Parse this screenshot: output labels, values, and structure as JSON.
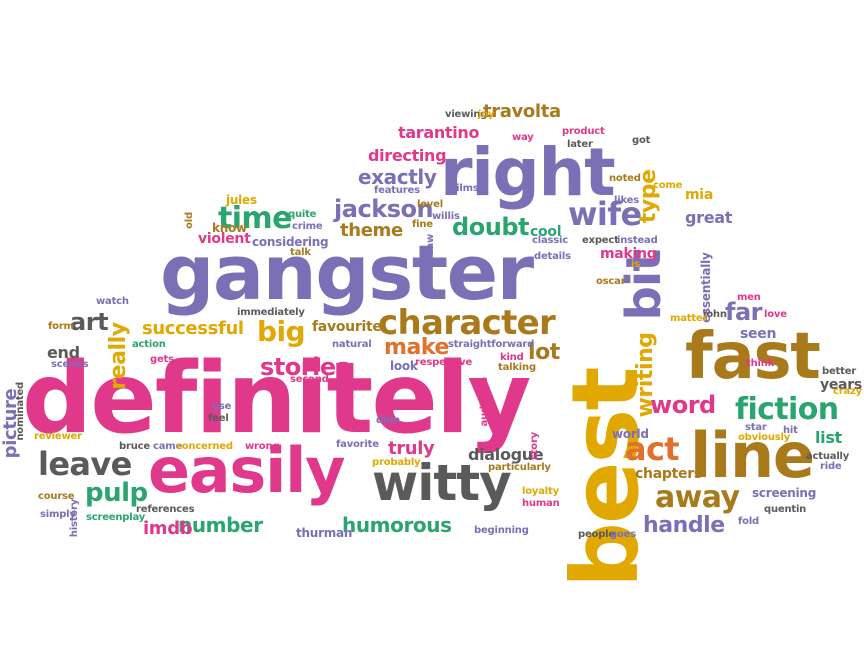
{
  "words": [
    {
      "text": "definitely",
      "color": "#e0388a",
      "rotated": false
    },
    {
      "text": "best",
      "color": "#e0a800",
      "rotated": true
    },
    {
      "text": "gangster",
      "color": "#7b6fb5",
      "rotated": false
    },
    {
      "text": "right",
      "color": "#7b6fb5",
      "rotated": false
    },
    {
      "text": "easily",
      "color": "#e0388a",
      "rotated": false
    },
    {
      "text": "witty",
      "color": "#5a5a5a",
      "rotated": false
    },
    {
      "text": "fast",
      "color": "#a87a1c",
      "rotated": false
    },
    {
      "text": "line",
      "color": "#a87a1c",
      "rotated": false
    },
    {
      "text": "bit",
      "color": "#7b6fb5",
      "rotated": true
    },
    {
      "text": "character",
      "color": "#a87a1c",
      "rotated": false
    },
    {
      "text": "fiction",
      "color": "#2aa570",
      "rotated": false
    },
    {
      "text": "wife",
      "color": "#7b6fb5",
      "rotated": false
    },
    {
      "text": "time",
      "color": "#2aa570",
      "rotated": false
    },
    {
      "text": "jackson",
      "color": "#7b6fb5",
      "rotated": false
    },
    {
      "text": "leave",
      "color": "#5a5a5a",
      "rotated": false
    },
    {
      "text": "act",
      "color": "#e0702a",
      "rotated": false
    },
    {
      "text": "big",
      "color": "#e0a800",
      "rotated": false
    },
    {
      "text": "doubt",
      "color": "#2aa570",
      "rotated": false
    },
    {
      "text": "away",
      "color": "#a87a1c",
      "rotated": false
    },
    {
      "text": "handle",
      "color": "#7b6fb5",
      "rotated": false
    },
    {
      "text": "stories",
      "color": "#e0388a",
      "rotated": false
    },
    {
      "text": "word",
      "color": "#e0388a",
      "rotated": false
    },
    {
      "text": "pulp",
      "color": "#2aa570",
      "rotated": false
    },
    {
      "text": "art",
      "color": "#5a5a5a",
      "rotated": false
    },
    {
      "text": "make",
      "color": "#e0702a",
      "rotated": false
    },
    {
      "text": "lot",
      "color": "#a87a1c",
      "rotated": false
    },
    {
      "text": "number",
      "color": "#2aa570",
      "rotated": false
    },
    {
      "text": "humorous",
      "color": "#2aa570",
      "rotated": false
    },
    {
      "text": "exactly",
      "color": "#7b6fb5",
      "rotated": false
    },
    {
      "text": "far",
      "color": "#7b6fb5",
      "rotated": false
    },
    {
      "text": "successful",
      "color": "#e0a800",
      "rotated": false
    },
    {
      "text": "travolta",
      "color": "#a87a1c",
      "rotated": false
    },
    {
      "text": "tarantino",
      "color": "#e0388a",
      "rotated": false
    },
    {
      "text": "directing",
      "color": "#e0388a",
      "rotated": false
    },
    {
      "text": "type",
      "color": "#e0a800",
      "rotated": true
    },
    {
      "text": "theme",
      "color": "#a87a1c",
      "rotated": false
    },
    {
      "text": "imdb",
      "color": "#e0388a",
      "rotated": false
    },
    {
      "text": "truly",
      "color": "#e0388a",
      "rotated": false
    },
    {
      "text": "favourite",
      "color": "#a87a1c",
      "rotated": false
    },
    {
      "text": "really",
      "color": "#e0a800",
      "rotated": true
    },
    {
      "text": "writing",
      "color": "#e0a800",
      "rotated": true
    },
    {
      "text": "dialogue",
      "color": "#5a5a5a",
      "rotated": false
    },
    {
      "text": "list",
      "color": "#2aa570",
      "rotated": false
    },
    {
      "text": "end",
      "color": "#5a5a5a",
      "rotated": false
    },
    {
      "text": "picture",
      "color": "#7b6fb5",
      "rotated": true
    },
    {
      "text": "making",
      "color": "#e0388a",
      "rotated": false
    },
    {
      "text": "cool",
      "color": "#2aa570",
      "rotated": false
    },
    {
      "text": "great",
      "color": "#7b6fb5",
      "rotated": false
    },
    {
      "text": "considering",
      "color": "#7b6fb5",
      "rotated": false
    },
    {
      "text": "chapters",
      "color": "#a87a1c",
      "rotated": false
    },
    {
      "text": "screening",
      "color": "#7b6fb5",
      "rotated": false
    },
    {
      "text": "seen",
      "color": "#7b6fb5",
      "rotated": false
    },
    {
      "text": "jules",
      "color": "#e0a800",
      "rotated": false
    },
    {
      "text": "violent",
      "color": "#e0388a",
      "rotated": false
    },
    {
      "text": "know",
      "color": "#a87a1c",
      "rotated": false
    },
    {
      "text": "years",
      "color": "#5a5a5a",
      "rotated": false
    },
    {
      "text": "mia",
      "color": "#e0a800",
      "rotated": false
    },
    {
      "text": "thurman",
      "color": "#7b6fb5",
      "rotated": false
    },
    {
      "text": "essentially",
      "color": "#7b6fb5",
      "rotated": true
    },
    {
      "text": "look",
      "color": "#7b6fb5",
      "rotated": false
    },
    {
      "text": "world",
      "color": "#7b6fb5",
      "rotated": false
    },
    {
      "text": "oscar",
      "color": "#a87a1c",
      "rotated": false
    },
    {
      "text": "watch",
      "color": "#7b6fb5",
      "rotated": false
    },
    {
      "text": "scenes",
      "color": "#7b6fb5",
      "rotated": false
    },
    {
      "text": "form",
      "color": "#a87a1c",
      "rotated": false
    },
    {
      "text": "action",
      "color": "#2aa570",
      "rotated": false
    },
    {
      "text": "gets",
      "color": "#e0388a",
      "rotated": false
    },
    {
      "text": "natural",
      "color": "#7b6fb5",
      "rotated": false
    },
    {
      "text": "second",
      "color": "#e0388a",
      "rotated": false
    },
    {
      "text": "straightforward",
      "color": "#7b6fb5",
      "rotated": false
    },
    {
      "text": "respective",
      "color": "#e0388a",
      "rotated": false
    },
    {
      "text": "kind",
      "color": "#e0388a",
      "rotated": false
    },
    {
      "text": "talking",
      "color": "#a87a1c",
      "rotated": false
    },
    {
      "text": "audience",
      "color": "#e0388a",
      "rotated": true
    },
    {
      "text": "story",
      "color": "#e0388a",
      "rotated": true
    },
    {
      "text": "nominated",
      "color": "#5a5a5a",
      "rotated": true
    },
    {
      "text": "reviewer",
      "color": "#e0a800",
      "rotated": false
    },
    {
      "text": "bruce",
      "color": "#5a5a5a",
      "rotated": false
    },
    {
      "text": "came",
      "color": "#7b6fb5",
      "rotated": false
    },
    {
      "text": "concerned",
      "color": "#e0a800",
      "rotated": false
    },
    {
      "text": "wrong",
      "color": "#e0388a",
      "rotated": false
    },
    {
      "text": "favorite",
      "color": "#7b6fb5",
      "rotated": false
    },
    {
      "text": "didn",
      "color": "#7b6fb5",
      "rotated": false
    },
    {
      "text": "probably",
      "color": "#e0a800",
      "rotated": false
    },
    {
      "text": "particularly",
      "color": "#a87a1c",
      "rotated": false
    },
    {
      "text": "loyalty",
      "color": "#e0a800",
      "rotated": false
    },
    {
      "text": "human",
      "color": "#e0388a",
      "rotated": false
    },
    {
      "text": "beginning",
      "color": "#7b6fb5",
      "rotated": false
    },
    {
      "text": "references",
      "color": "#5a5a5a",
      "rotated": false
    },
    {
      "text": "screenplay",
      "color": "#2aa570",
      "rotated": false
    },
    {
      "text": "simply",
      "color": "#7b6fb5",
      "rotated": false
    },
    {
      "text": "course",
      "color": "#a87a1c",
      "rotated": false
    },
    {
      "text": "history",
      "color": "#7b6fb5",
      "rotated": true
    },
    {
      "text": "feel",
      "color": "#5a5a5a",
      "rotated": false
    },
    {
      "text": "use",
      "color": "#7b6fb5",
      "rotated": false
    },
    {
      "text": "people",
      "color": "#5a5a5a",
      "rotated": false
    },
    {
      "text": "goes",
      "color": "#7b6fb5",
      "rotated": false
    },
    {
      "text": "quentin",
      "color": "#5a5a5a",
      "rotated": false
    },
    {
      "text": "fold",
      "color": "#7b6fb5",
      "rotated": false
    },
    {
      "text": "actually",
      "color": "#5a5a5a",
      "rotated": false
    },
    {
      "text": "ride",
      "color": "#7b6fb5",
      "rotated": false
    },
    {
      "text": "crazy",
      "color": "#e0a800",
      "rotated": false
    },
    {
      "text": "better",
      "color": "#5a5a5a",
      "rotated": false
    },
    {
      "text": "obviously",
      "color": "#e0a800",
      "rotated": false
    },
    {
      "text": "hit",
      "color": "#7b6fb5",
      "rotated": false
    },
    {
      "text": "star",
      "color": "#7b6fb5",
      "rotated": false
    },
    {
      "text": "think",
      "color": "#e0388a",
      "rotated": false
    },
    {
      "text": "love",
      "color": "#e0388a",
      "rotated": false
    },
    {
      "text": "men",
      "color": "#e0388a",
      "rotated": false
    },
    {
      "text": "john",
      "color": "#5a5a5a",
      "rotated": false
    },
    {
      "text": "matter",
      "color": "#e0a800",
      "rotated": false
    },
    {
      "text": "immediately",
      "color": "#5a5a5a",
      "rotated": false
    },
    {
      "text": "crime",
      "color": "#7b6fb5",
      "rotated": false
    },
    {
      "text": "quite",
      "color": "#2aa570",
      "rotated": false
    },
    {
      "text": "talk",
      "color": "#a87a1c",
      "rotated": false
    },
    {
      "text": "old",
      "color": "#a87a1c",
      "rotated": true
    },
    {
      "text": "features",
      "color": "#7b6fb5",
      "rotated": false
    },
    {
      "text": "level",
      "color": "#a87a1c",
      "rotated": false
    },
    {
      "text": "films",
      "color": "#7b6fb5",
      "rotated": false
    },
    {
      "text": "fine",
      "color": "#a87a1c",
      "rotated": false
    },
    {
      "text": "willis",
      "color": "#7b6fb5",
      "rotated": false
    },
    {
      "text": "saw",
      "color": "#7b6fb5",
      "rotated": true
    },
    {
      "text": "classic",
      "color": "#7b6fb5",
      "rotated": false
    },
    {
      "text": "details",
      "color": "#7b6fb5",
      "rotated": false
    },
    {
      "text": "expect",
      "color": "#5a5a5a",
      "rotated": false
    },
    {
      "text": "instead",
      "color": "#7b6fb5",
      "rotated": false
    },
    {
      "text": "is",
      "color": "#e0a800",
      "rotated": false
    },
    {
      "text": "likes",
      "color": "#7b6fb5",
      "rotated": false
    },
    {
      "text": "noted",
      "color": "#a87a1c",
      "rotated": false
    },
    {
      "text": "come",
      "color": "#e0a800",
      "rotated": false
    },
    {
      "text": "got",
      "color": "#5a5a5a",
      "rotated": false
    },
    {
      "text": "later",
      "color": "#5a5a5a",
      "rotated": false
    },
    {
      "text": "product",
      "color": "#e0388a",
      "rotated": false
    },
    {
      "text": "way",
      "color": "#e0388a",
      "rotated": false
    },
    {
      "text": "viewing",
      "color": "#5a5a5a",
      "rotated": false
    },
    {
      "text": "joy",
      "color": "#e0a800",
      "rotated": false
    }
  ]
}
